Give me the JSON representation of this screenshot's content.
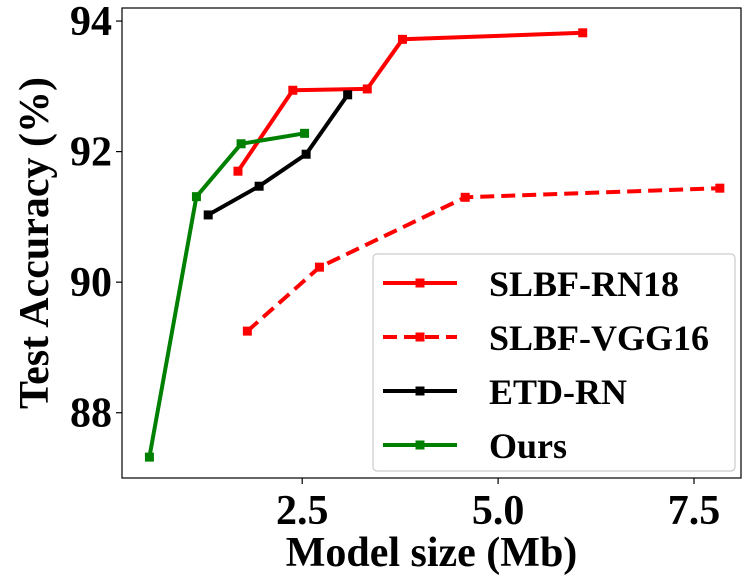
{
  "chart_data": {
    "type": "line",
    "title": "",
    "xlabel": "Model size (Mb)",
    "ylabel": "Test Accuracy (%)",
    "xlim": [
      0.2,
      8.1
    ],
    "ylim": [
      87.0,
      94.2
    ],
    "xticks": [
      2.5,
      5.0,
      7.5
    ],
    "xtick_labels": [
      "2.5",
      "5.0",
      "7.5"
    ],
    "yticks": [
      88,
      90,
      92,
      94
    ],
    "ytick_labels": [
      "88",
      "90",
      "92",
      "94"
    ],
    "grid": false,
    "legend_position": "lower-right",
    "series": [
      {
        "name": "SLBF-RN18",
        "color": "#ff0000",
        "linestyle": "solid",
        "marker": "square",
        "x": [
          1.68,
          2.38,
          3.33,
          3.78,
          6.08
        ],
        "y": [
          91.7,
          92.94,
          92.96,
          93.72,
          93.82
        ]
      },
      {
        "name": "SLBF-VGG16",
        "color": "#ff0000",
        "linestyle": "dashed",
        "marker": "square",
        "x": [
          1.8,
          2.72,
          4.58,
          7.83
        ],
        "y": [
          89.25,
          90.23,
          91.3,
          91.44
        ]
      },
      {
        "name": "ETD-RN",
        "color": "#000000",
        "linestyle": "solid",
        "marker": "square",
        "x": [
          1.3,
          1.95,
          2.55,
          3.08
        ],
        "y": [
          91.03,
          91.47,
          91.96,
          92.87
        ]
      },
      {
        "name": "Ours",
        "color": "#008000",
        "linestyle": "solid",
        "marker": "square",
        "x": [
          0.55,
          1.15,
          1.72,
          2.53
        ],
        "y": [
          87.32,
          91.31,
          92.12,
          92.28
        ]
      }
    ]
  }
}
